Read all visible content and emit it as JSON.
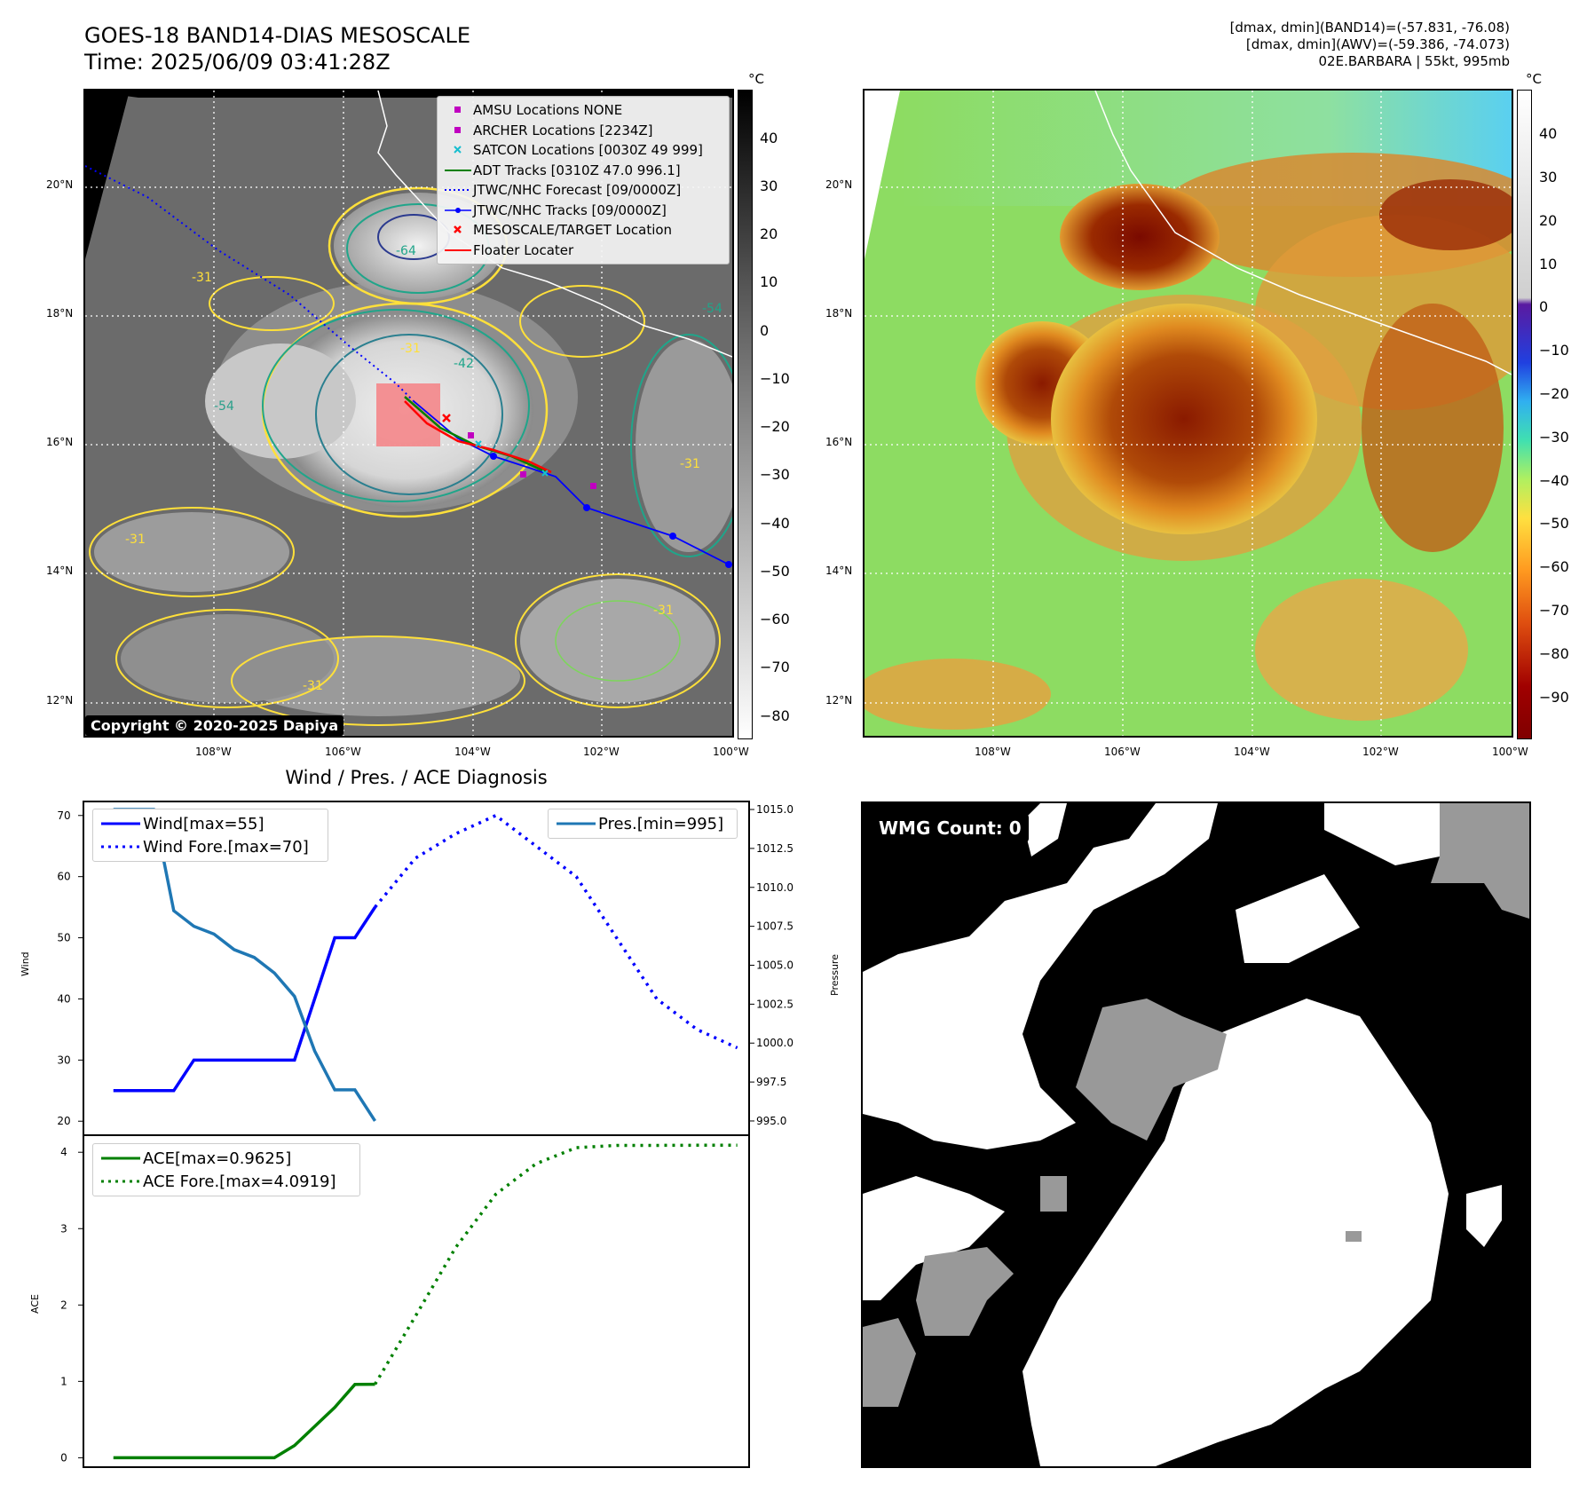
{
  "header": {
    "title_line1": "GOES-18 BAND14-DIAS MESOSCALE",
    "title_line2": "Time: 2025/06/09 03:41:28Z",
    "info_line1": "[dmax, dmin](BAND14)=(-57.831, -76.08)",
    "info_line2": "[dmax, dmin](AWV)=(-59.386, -74.073)",
    "info_line3": "02E.BARBARA | 55kt, 995mb"
  },
  "map": {
    "lat_labels": [
      "20°N",
      "18°N",
      "16°N",
      "14°N",
      "12°N"
    ],
    "lon_labels": [
      "108°W",
      "106°W",
      "104°W",
      "102°W",
      "100°W"
    ],
    "contour_labels": [
      "-31",
      "-54",
      "-64",
      "-42",
      "-31",
      "-31",
      "-31",
      "-31",
      "-54",
      "-31"
    ],
    "copyright": "Copyright © 2020-2025 Dapiya",
    "legend": [
      {
        "label": "AMSU Locations NONE",
        "icon": "square-marker",
        "color": "#c000c0"
      },
      {
        "label": "ARCHER Locations [2234Z]",
        "icon": "square-marker",
        "color": "#c000c0"
      },
      {
        "label": "SATCON Locations [0030Z 49 999]",
        "icon": "x-marker",
        "color": "#17becf"
      },
      {
        "label": "ADT Tracks [0310Z 47.0 996.1]",
        "icon": "solid-line",
        "color": "#008000"
      },
      {
        "label": "JTWC/NHC Forecast [09/0000Z]",
        "icon": "dotted-line",
        "color": "#0000ff"
      },
      {
        "label": "JTWC/NHC Tracks [09/0000Z]",
        "icon": "line-dot",
        "color": "#0000ff"
      },
      {
        "label": "MESOSCALE/TARGET Location",
        "icon": "x-marker",
        "color": "#ff0000"
      },
      {
        "label": "Floater Locater",
        "icon": "solid-line",
        "color": "#ff0000"
      }
    ]
  },
  "colorbar_left": {
    "unit": "°C",
    "ticks": [
      "40",
      "30",
      "20",
      "10",
      "0",
      "−10",
      "−20",
      "−30",
      "−40",
      "−50",
      "−60",
      "−70",
      "−80"
    ]
  },
  "colorbar_right": {
    "unit": "°C",
    "ticks": [
      "40",
      "30",
      "20",
      "10",
      "0",
      "−10",
      "−20",
      "−30",
      "−40",
      "−50",
      "−60",
      "−70",
      "−80",
      "−90"
    ]
  },
  "wmg": {
    "label": "WMG Count: 0"
  },
  "chart_data": [
    {
      "type": "line",
      "title": "Wind / Pres. / ACE Diagnosis",
      "ylabel": "Wind",
      "ylabel_right": "Pressure",
      "ylim": [
        18,
        72
      ],
      "ylim_right": [
        994.2,
        1015.4
      ],
      "yticks": [
        20,
        30,
        40,
        50,
        60,
        70
      ],
      "yticks_right_labels": [
        "995.0",
        "997.5",
        "1000.0",
        "1002.5",
        "1005.0",
        "1007.5",
        "1010.0",
        "1012.5",
        "1015.0"
      ],
      "series": [
        {
          "name": "Wind[max=55]",
          "color": "#0000ff",
          "style": "solid",
          "x": [
            0,
            1,
            2,
            3,
            4,
            5,
            6,
            7,
            8,
            9,
            10,
            11,
            12,
            13
          ],
          "values": [
            25,
            25,
            25,
            25,
            30,
            30,
            30,
            30,
            30,
            30,
            40,
            50,
            50,
            55
          ]
        },
        {
          "name": "Wind Fore.[max=70]",
          "color": "#0000ff",
          "style": "dotted",
          "x": [
            13,
            15,
            17,
            19,
            21,
            23,
            25,
            27,
            29,
            31
          ],
          "values": [
            55,
            63,
            67,
            70,
            65,
            60,
            50,
            40,
            35,
            32
          ]
        },
        {
          "name": "Pres.[min=995]",
          "color": "#1f77b4",
          "style": "solid",
          "axis": "right",
          "x": [
            0,
            1,
            2,
            3,
            4,
            5,
            6,
            7,
            8,
            9,
            10,
            11,
            12,
            13
          ],
          "values": [
            1015,
            1015,
            1015,
            1008.5,
            1007.5,
            1007,
            1006,
            1005.5,
            1004.5,
            1003,
            999.5,
            997,
            997,
            995
          ]
        }
      ]
    },
    {
      "type": "line",
      "ylabel": "ACE",
      "ylim": [
        -0.1,
        4.2
      ],
      "yticks": [
        0,
        1,
        2,
        3,
        4
      ],
      "series": [
        {
          "name": "ACE[max=0.9625]",
          "color": "#008000",
          "style": "solid",
          "x": [
            0,
            1,
            2,
            3,
            4,
            5,
            6,
            7,
            8,
            9,
            10,
            11,
            12,
            13
          ],
          "values": [
            0,
            0,
            0,
            0,
            0,
            0,
            0,
            0,
            0,
            0.16,
            0.41,
            0.66,
            0.96,
            0.9625
          ]
        },
        {
          "name": "ACE Fore.[max=4.0919]",
          "color": "#008000",
          "style": "dotted",
          "x": [
            13,
            15,
            17,
            19,
            21,
            23,
            25,
            27,
            29,
            31
          ],
          "values": [
            0.9625,
            1.85,
            2.75,
            3.45,
            3.85,
            4.06,
            4.09,
            4.09,
            4.0919,
            4.0919
          ]
        }
      ]
    }
  ]
}
